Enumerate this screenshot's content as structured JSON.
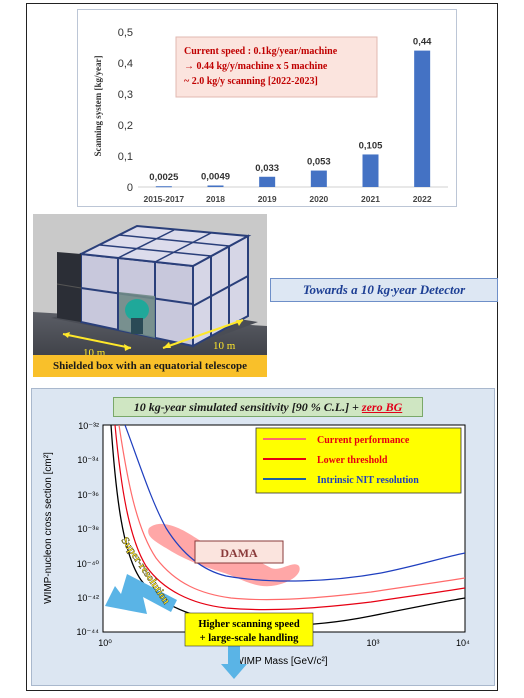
{
  "bar_chart": {
    "ylabel": "Scanning system [kg/year]",
    "yticks": [
      "0",
      "0,1",
      "0,2",
      "0,3",
      "0,4",
      "0,5"
    ],
    "annotation": [
      "Current speed : 0.1kg/year/machine",
      "→ 0.44 kg/y/machine x 5 machine",
      "~ 2.0 kg/y scanning [2022-2023]"
    ],
    "bar_color": "#4472c4"
  },
  "detector_image": {
    "dimension_left": "10 m",
    "dimension_right": "10 m",
    "caption": "Shielded box with an equatorial telescope"
  },
  "towards_label": "Towards a 10 kg·year Detector",
  "sensitivity_plot": {
    "title_main": "10 kg-year simulated sensitivity [90 % C.L.] +",
    "title_zero": "zero BG",
    "ylabel": "WIMP-nucleon cross section [cm²]",
    "xlabel": "WIMP Mass [GeV/c²]",
    "yticks": [
      "10⁻³²",
      "10⁻³⁴",
      "10⁻³⁶",
      "10⁻³⁸",
      "10⁻⁴⁰",
      "10⁻⁴²",
      "10⁻⁴⁴"
    ],
    "xticks": [
      "10⁰",
      "10³",
      "10⁴"
    ],
    "legend": [
      "Current performance",
      "Lower threshold",
      "Intrinsic NIT resolution"
    ],
    "dama_label": "DAMA",
    "super_resolution_label": "Super-resolution",
    "scanning_label": [
      "Higher scanning speed",
      "+ large-scale handling"
    ],
    "colors": {
      "current": "#ff6b6b",
      "lower": "#e60012",
      "intrinsic": "#1f3fbf",
      "black": "#000000",
      "dama": "#ff8a8a",
      "arrow": "#5ab4e6"
    }
  },
  "chart_data": [
    {
      "type": "bar",
      "categories": [
        "2015-2017",
        "2018",
        "2019",
        "2020",
        "2021",
        "2022"
      ],
      "values": [
        0.0025,
        0.0049,
        0.033,
        0.053,
        0.105,
        0.44
      ],
      "value_labels": [
        "0,0025",
        "0,0049",
        "0,033",
        "0,053",
        "0,105",
        "0,44"
      ],
      "ylabel": "Scanning system [kg/year]",
      "ylim": [
        0,
        0.5
      ],
      "grid": false
    }
  ]
}
